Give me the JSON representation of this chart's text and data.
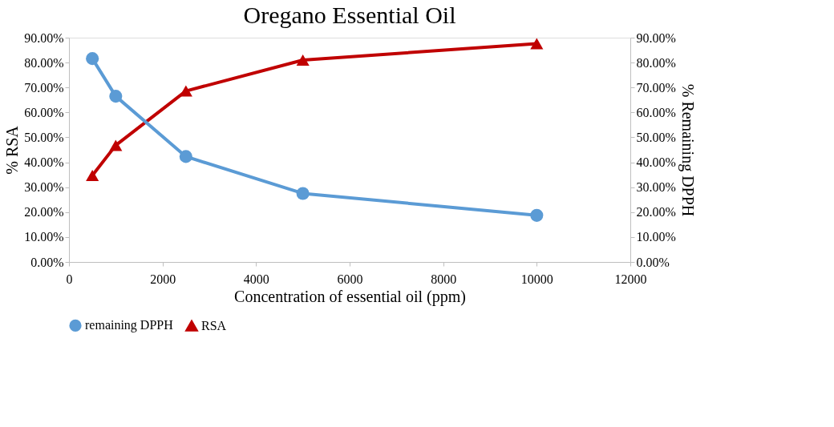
{
  "chart_data": {
    "type": "line",
    "title": "Oregano Essential Oil",
    "xlabel": "Concentration of essential oil (ppm)",
    "ylabel": "% RSA",
    "y2label": "% Remaining DPPH",
    "xlim": [
      0,
      12000
    ],
    "xticks": [
      0,
      2000,
      4000,
      6000,
      8000,
      10000,
      12000
    ],
    "ylim": [
      0,
      90
    ],
    "yticks": [
      {
        "value": 0,
        "label": "0.00%"
      },
      {
        "value": 10,
        "label": "10.00%"
      },
      {
        "value": 20,
        "label": "20.00%"
      },
      {
        "value": 30,
        "label": "30.00%"
      },
      {
        "value": 40,
        "label": "40.00%"
      },
      {
        "value": 50,
        "label": "50.00%"
      },
      {
        "value": 60,
        "label": "60.00%"
      },
      {
        "value": 70,
        "label": "70.00%"
      },
      {
        "value": 80,
        "label": "80.00%"
      },
      {
        "value": 90,
        "label": "90.00%"
      }
    ],
    "y2lim": [
      0,
      90
    ],
    "y2ticks": [
      {
        "value": 0,
        "label": "0.00%"
      },
      {
        "value": 10,
        "label": "10.00%"
      },
      {
        "value": 20,
        "label": "20.00%"
      },
      {
        "value": 30,
        "label": "30.00%"
      },
      {
        "value": 40,
        "label": "40.00%"
      },
      {
        "value": 50,
        "label": "50.00%"
      },
      {
        "value": 60,
        "label": "60.00%"
      },
      {
        "value": 70,
        "label": "70.00%"
      },
      {
        "value": 80,
        "label": "80.00%"
      },
      {
        "value": 90,
        "label": "90.00%"
      }
    ],
    "x": [
      500,
      1000,
      2500,
      5000,
      10000
    ],
    "series": [
      {
        "name": "remaining DPPH",
        "color": "#5b9bd5",
        "axis": "y2",
        "marker": "circle",
        "values": [
          81.6,
          66.5,
          42.3,
          27.5,
          18.7
        ]
      },
      {
        "name": "RSA",
        "color": "#c00000",
        "marker": "triangle",
        "values": [
          34.7,
          46.8,
          68.6,
          81.0,
          87.6
        ]
      }
    ],
    "grid": false,
    "legend": "bottom",
    "line_style": "solid"
  }
}
